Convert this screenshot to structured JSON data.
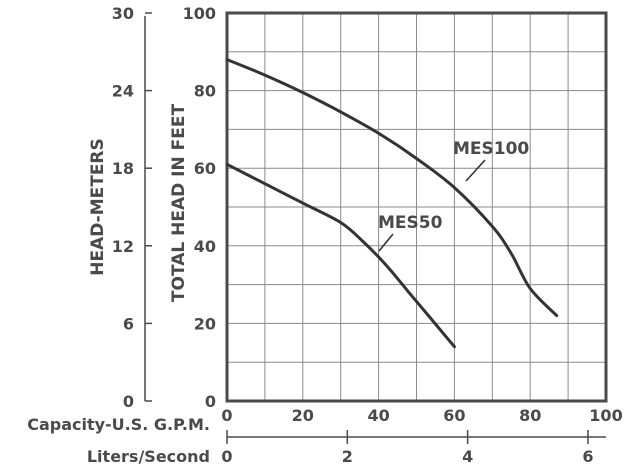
{
  "chart_data": {
    "type": "line",
    "x_axes": [
      {
        "label": "Capacity-U.S. G.P.M.",
        "range": [
          0,
          100
        ],
        "ticks": [
          "0",
          "20",
          "40",
          "60",
          "80",
          "100"
        ]
      },
      {
        "label": "Liters/Second",
        "range": [
          0,
          6.3
        ],
        "ticks": [
          "0",
          "2",
          "4",
          "6"
        ]
      }
    ],
    "y_axes": [
      {
        "label": "TOTAL HEAD IN FEET",
        "range": [
          0,
          100
        ],
        "ticks": [
          "0",
          "20",
          "40",
          "60",
          "80",
          "100"
        ]
      },
      {
        "label": "HEAD-METERS",
        "range": [
          0,
          30
        ],
        "ticks": [
          "0",
          "6",
          "12",
          "18",
          "24",
          "30"
        ]
      }
    ],
    "grid": true,
    "series": [
      {
        "name": "MES100",
        "x": [
          0,
          10,
          20,
          30,
          40,
          50,
          60,
          70,
          75,
          80,
          87
        ],
        "y": [
          88,
          84,
          79.5,
          74.5,
          69,
          62.5,
          55,
          45,
          38,
          29,
          22
        ]
      },
      {
        "name": "MES50",
        "x": [
          0,
          10,
          20,
          30,
          36,
          42,
          48,
          54,
          60
        ],
        "y": [
          61,
          56,
          51,
          46,
          41,
          35,
          28,
          21,
          14
        ]
      }
    ]
  }
}
